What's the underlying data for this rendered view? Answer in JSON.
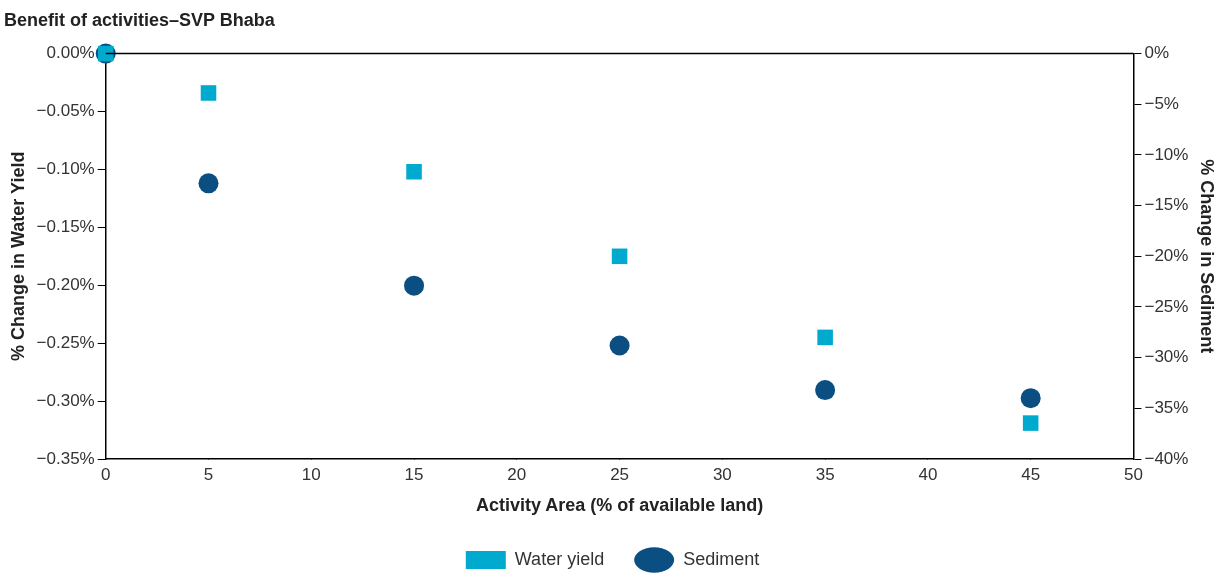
{
  "chart_data": {
    "type": "scatter",
    "title": "Benefit of activities–SVP Bhaba",
    "xlabel": "Activity Area (% of available land)",
    "ylabel": "% Change in Water Yield",
    "y2label": "% Change in Sediment",
    "x": [
      0,
      5,
      15,
      25,
      35,
      45
    ],
    "series": [
      {
        "name": "Water yield",
        "color": "#00a9ce",
        "marker": "square",
        "values": [
          0,
          -0.034,
          -0.102,
          -0.175,
          -0.245,
          -0.319
        ]
      },
      {
        "name": "Sediment",
        "color": "#0b4f82",
        "marker": "circle",
        "axis": "y2",
        "values": [
          0,
          -12.8,
          -22.9,
          -28.8,
          -33.2,
          -34.0
        ]
      }
    ],
    "xlim": [
      0,
      50
    ],
    "xticks": [
      0,
      5,
      10,
      15,
      20,
      25,
      30,
      35,
      40,
      45,
      50
    ],
    "ylim": [
      -0.35,
      0
    ],
    "yticks": [
      {
        "value": 0,
        "label": "0.00%"
      },
      {
        "value": -0.05,
        "label": "−0.05%"
      },
      {
        "value": -0.1,
        "label": "−0.10%"
      },
      {
        "value": -0.15,
        "label": "−0.15%"
      },
      {
        "value": -0.2,
        "label": "−0.20%"
      },
      {
        "value": -0.25,
        "label": "−0.25%"
      },
      {
        "value": -0.3,
        "label": "−0.30%"
      },
      {
        "value": -0.35,
        "label": "−0.35%"
      }
    ],
    "y2lim": [
      -40,
      0
    ],
    "y2ticks": [
      {
        "value": 0,
        "label": "0%"
      },
      {
        "value": -5,
        "label": "−5%"
      },
      {
        "value": -10,
        "label": "−10%"
      },
      {
        "value": -15,
        "label": "−15%"
      },
      {
        "value": -20,
        "label": "−20%"
      },
      {
        "value": -25,
        "label": "−25%"
      },
      {
        "value": -30,
        "label": "−30%"
      },
      {
        "value": -35,
        "label": "−35%"
      },
      {
        "value": -40,
        "label": "−40%"
      }
    ],
    "grid": false,
    "legend": "bottom"
  }
}
